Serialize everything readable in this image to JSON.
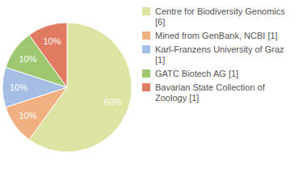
{
  "chart_data": {
    "type": "pie",
    "categories": [
      "Centre for Biodiversity Genomics [6]",
      "Mined from GenBank, NCBI [1]",
      "Karl-Franzens University of Graz [1]",
      "GATC Biotech AG [1]",
      "Bavarian State Collection of Zoology [1]"
    ],
    "values": [
      60,
      10,
      10,
      10,
      10
    ],
    "value_labels": [
      "60%",
      "10%",
      "10%",
      "10%",
      "10%"
    ],
    "colors": [
      "#dde3a0",
      "#f0b07f",
      "#a5bde2",
      "#9dc870",
      "#e07a60"
    ],
    "data_labels": true,
    "legend": "right"
  }
}
